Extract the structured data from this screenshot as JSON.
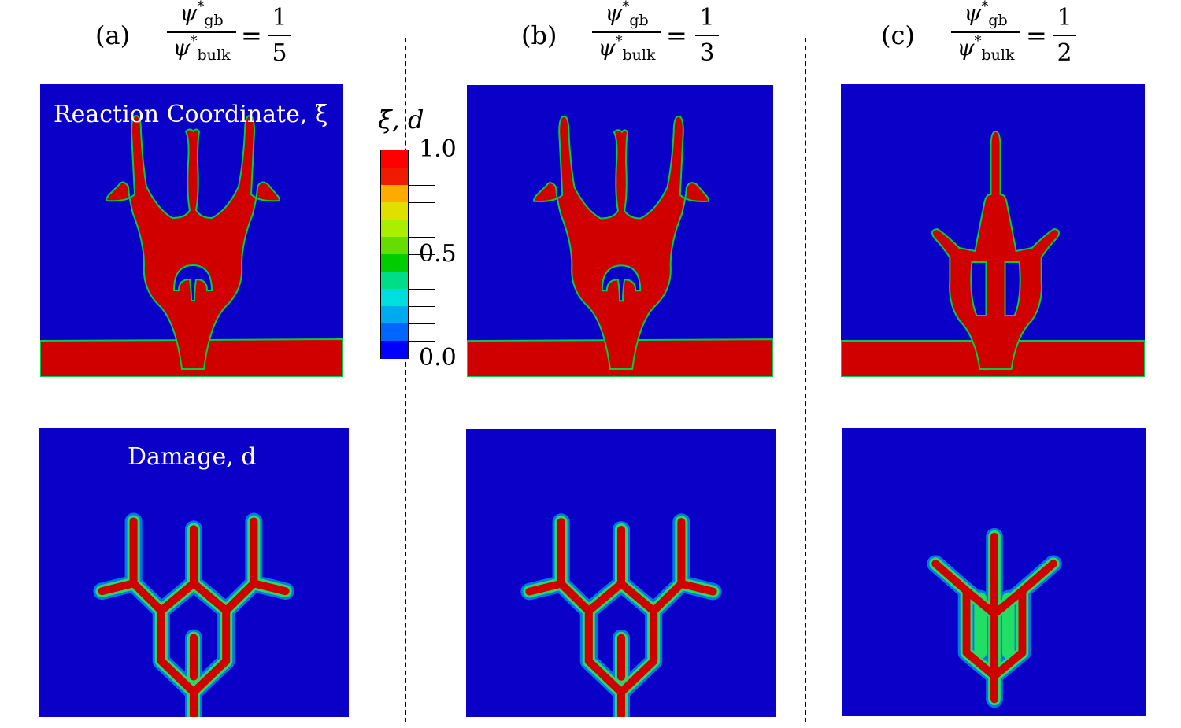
{
  "columns": [
    {
      "id": "a",
      "label": "(a)",
      "ratio_num": "1",
      "ratio_den": "5"
    },
    {
      "id": "b",
      "label": "(b)",
      "ratio_num": "1",
      "ratio_den": "3"
    },
    {
      "id": "c",
      "label": "(c)",
      "ratio_num": "1",
      "ratio_den": "2"
    }
  ],
  "ratio": {
    "num_symbol": "ψ",
    "num_sup": "*",
    "num_sub": "gb",
    "den_symbol": "ψ",
    "den_sup": "*",
    "den_sub": "bulk",
    "equals": "="
  },
  "panel_titles": {
    "reaction": "Reaction Coordinate, ξ̄",
    "damage": "Damage, d"
  },
  "colorbar": {
    "title": "ξ̄, d",
    "labels": {
      "top": "1.0",
      "mid": "0.5",
      "bottom": "0.0"
    },
    "colors": [
      "#ff0000",
      "#f01a00",
      "#ffaa00",
      "#e0e000",
      "#aaee00",
      "#66dd00",
      "#00cc00",
      "#00dd88",
      "#00dddd",
      "#00aaee",
      "#0066ff",
      "#0000ff"
    ]
  },
  "colors": {
    "background_field": "#0a00c8",
    "phase": "#d00000",
    "interface": "#00cc44"
  }
}
